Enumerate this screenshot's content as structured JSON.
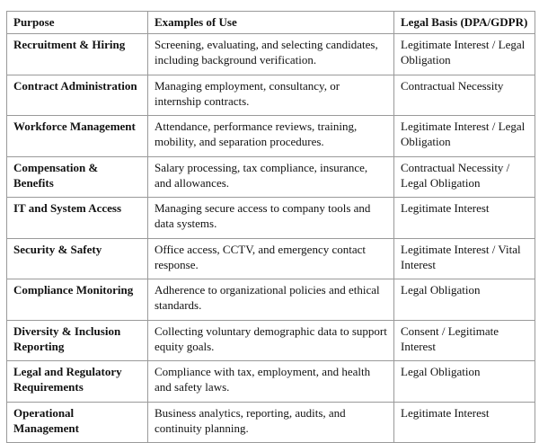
{
  "headers": [
    "Purpose",
    "Examples of Use",
    "Legal Basis (DPA/GDPR)"
  ],
  "rows": [
    {
      "purpose": "Recruitment & Hiring",
      "examples": "Screening, evaluating, and selecting candidates, including background verification.",
      "basis": "Legitimate Interest / Legal Obligation"
    },
    {
      "purpose": "Contract Administration",
      "examples": "Managing employment, consultancy, or internship contracts.",
      "basis": "Contractual Necessity"
    },
    {
      "purpose": "Workforce Management",
      "examples": "Attendance, performance reviews, training, mobility, and separation procedures.",
      "basis": "Legitimate Interest / Legal Obligation"
    },
    {
      "purpose": "Compensation & Benefits",
      "examples": "Salary processing, tax compliance, insurance, and allowances.",
      "basis": "Contractual Necessity / Legal Obligation"
    },
    {
      "purpose": "IT and System Access",
      "examples": "Managing secure access to company tools and data systems.",
      "basis": "Legitimate Interest"
    },
    {
      "purpose": "Security & Safety",
      "examples": "Office access, CCTV, and emergency contact response.",
      "basis": "Legitimate Interest / Vital Interest"
    },
    {
      "purpose": "Compliance Monitoring",
      "examples": "Adherence to organizational policies and ethical standards.",
      "basis": "Legal Obligation"
    },
    {
      "purpose": "Diversity & Inclusion Reporting",
      "examples": "Collecting voluntary demographic data to support equity goals.",
      "basis": "Consent / Legitimate Interest"
    },
    {
      "purpose": "Legal and Regulatory Requirements",
      "examples": "Compliance with tax, employment, and health and safety laws.",
      "basis": "Legal Obligation"
    },
    {
      "purpose": "Operational Management",
      "examples": "Business analytics, reporting, audits, and continuity planning.",
      "basis": "Legitimate Interest"
    }
  ]
}
